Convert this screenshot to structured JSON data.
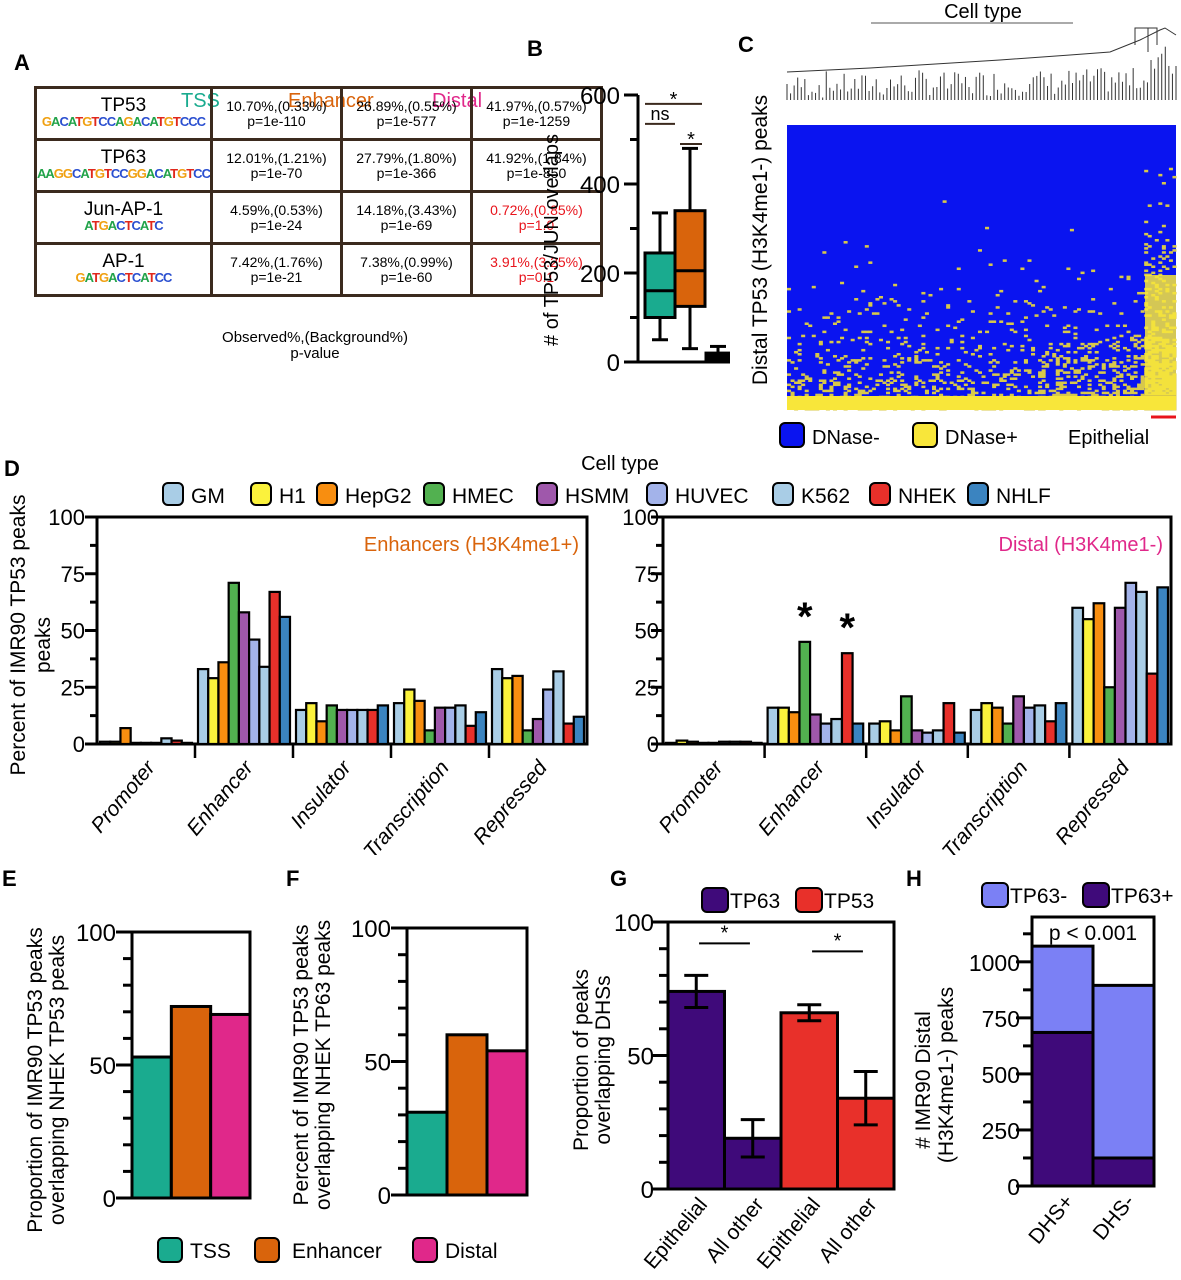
{
  "panels": {
    "A": {
      "letter": "A",
      "columns": [
        {
          "label": "TSS",
          "color": "#1aab8f"
        },
        {
          "label": "Enhancer",
          "color": "#d9640c"
        },
        {
          "label": "Distal",
          "color": "#e0288a"
        }
      ],
      "rows": [
        {
          "motif": "TP53",
          "logo": "GACATGTCCAGACATGTCCC",
          "cells": [
            {
              "observed": "10.70%,(0.33%)",
              "p": "p=1e-110",
              "highlight": false
            },
            {
              "observed": "26.89%,(0.55%)",
              "p": "p=1e-577",
              "highlight": false
            },
            {
              "observed": "41.97%,(0.57%)",
              "p": "p=1e-1259",
              "highlight": false
            }
          ]
        },
        {
          "motif": "TP63",
          "logo": "AAGGCATGTCCGGACATGTCC",
          "cells": [
            {
              "observed": "12.01%,(1.21%)",
              "p": "p=1e-70",
              "highlight": false
            },
            {
              "observed": "27.79%,(1.80%)",
              "p": "p=1e-366",
              "highlight": false
            },
            {
              "observed": "41.92%,(1.84%)",
              "p": "p=1e-850",
              "highlight": false
            }
          ]
        },
        {
          "motif": "Jun-AP-1",
          "logo": "ATGACTCATC",
          "cells": [
            {
              "observed": "4.59%,(0.53%)",
              "p": "p=1e-24",
              "highlight": false
            },
            {
              "observed": "14.18%,(3.43%)",
              "p": "p=1e-69",
              "highlight": false
            },
            {
              "observed": "0.72%,(0.85%)",
              "p": "p=1.0",
              "highlight": true
            }
          ]
        },
        {
          "motif": "AP-1",
          "logo": "GATGACTCATCC",
          "cells": [
            {
              "observed": "7.42%,(1.76%)",
              "p": "p=1e-21",
              "highlight": false
            },
            {
              "observed": "7.38%,(0.99%)",
              "p": "p=1e-60",
              "highlight": false
            },
            {
              "observed": "3.91%,(3.25%)",
              "p": "p=0.1",
              "highlight": true
            }
          ]
        }
      ],
      "footnote_line1": "Observed%,(Background%)",
      "footnote_line2": "p-value",
      "highlight_color": "#e8141c"
    },
    "C": {
      "letter": "C",
      "title": "Cell type",
      "ylabel": "Distal TP53 (H3K4me1-) peaks",
      "legend": [
        {
          "label": "DNase-",
          "color": "#0a14f0"
        },
        {
          "label": "DNase+",
          "color": "#f8e63a"
        }
      ],
      "annotation": "Epithelial",
      "annotation_color": "#e8141c"
    }
  },
  "chart_data": [
    {
      "id": "B",
      "letter": "B",
      "type": "box",
      "ylabel": "# of TP53/JUN overlaps",
      "ylim": [
        0,
        600
      ],
      "yticks": [
        0,
        200,
        400,
        600
      ],
      "categories": [
        "TSS",
        "Enhancer",
        "Distal"
      ],
      "colors": [
        "#1aab8f",
        "#d9640c",
        "#000000"
      ],
      "boxes": [
        {
          "min": 50,
          "q1": 100,
          "median": 160,
          "q3": 245,
          "max": 335
        },
        {
          "min": 30,
          "q1": 125,
          "median": 205,
          "q3": 340,
          "max": 480
        },
        {
          "min": 0,
          "q1": 0,
          "median": 10,
          "q3": 20,
          "max": 35
        }
      ],
      "annotations": [
        {
          "label": "*",
          "from": 0,
          "to": 2,
          "y": 580
        },
        {
          "label": "ns",
          "from": 0,
          "to": 1,
          "y": 535
        },
        {
          "label": "*",
          "from": 1,
          "to": 2,
          "y": 490
        }
      ]
    },
    {
      "id": "D",
      "letter": "D",
      "type": "bar",
      "legend_title": "Cell type",
      "ylabel": "Percent of IMR90  TP53 peaks",
      "ylim": [
        0,
        100
      ],
      "yticks": [
        0,
        25,
        50,
        75,
        100
      ],
      "categories": [
        "Promoter",
        "Enhancer",
        "Insulator",
        "Transcription",
        "Repressed"
      ],
      "series_names": [
        "GM",
        "H1",
        "HepG2",
        "HMEC",
        "HSMM",
        "HUVEC",
        "K562",
        "NHEK",
        "NHLF"
      ],
      "series_colors": [
        "#a9cde6",
        "#fbf23c",
        "#f88e10",
        "#52b150",
        "#9f58ab",
        "#a3b3ea",
        "#a9cde6",
        "#e8302a",
        "#3b84c0"
      ],
      "subplots": [
        {
          "title": "Enhancers (H3K4me1+)",
          "title_color": "#d9640c",
          "values": [
            [
              1,
              1,
              7,
              0.5,
              0.5,
              0.5,
              2.5,
              1.5,
              0.5
            ],
            [
              33,
              29,
              36,
              71,
              58,
              46,
              34,
              67,
              56
            ],
            [
              15,
              18,
              10,
              17,
              15,
              15,
              15,
              15,
              17
            ],
            [
              18,
              24,
              19,
              6,
              16,
              16,
              17,
              8,
              14
            ],
            [
              33,
              29,
              30,
              6,
              11,
              24,
              32,
              9,
              12
            ]
          ],
          "stars": []
        },
        {
          "title": "Distal (H3K4me1-)",
          "title_color": "#e0288a",
          "values": [
            [
              0.5,
              1.5,
              1,
              0.5,
              0.5,
              1,
              1,
              1,
              0.5
            ],
            [
              16,
              16,
              14,
              45,
              13,
              9,
              11,
              40,
              9
            ],
            [
              9,
              10,
              6,
              21,
              6,
              5,
              6,
              18,
              5
            ],
            [
              15,
              18,
              16,
              9,
              21,
              16,
              17,
              10,
              18
            ],
            [
              60,
              55,
              62,
              25,
              60,
              71,
              67,
              31,
              69
            ]
          ],
          "stars": [
            {
              "category": 1,
              "series": 3,
              "label": "*"
            },
            {
              "category": 1,
              "series": 7,
              "label": "*"
            }
          ]
        }
      ]
    },
    {
      "id": "E",
      "letter": "E",
      "type": "bar",
      "ylabel_line1": "Proportion of IMR90 TP53 peaks",
      "ylabel_line2": "overlapping NHEK TP53 peaks",
      "ylim": [
        0,
        100
      ],
      "yticks": [
        0,
        50,
        100
      ],
      "categories": [
        "TSS",
        "Enhancer",
        "Distal"
      ],
      "values": [
        53,
        72,
        69
      ],
      "colors": [
        "#1aab8f",
        "#d9640c",
        "#e0288a"
      ]
    },
    {
      "id": "F",
      "letter": "F",
      "type": "bar",
      "ylabel_line1": "Percent of IMR90 TP53 peaks",
      "ylabel_line2": "overlapping NHEK TP63 peaks",
      "ylim": [
        0,
        100
      ],
      "yticks": [
        0,
        50,
        100
      ],
      "categories": [
        "TSS",
        "Enhancer",
        "Distal"
      ],
      "values": [
        31,
        60,
        54
      ],
      "colors": [
        "#1aab8f",
        "#d9640c",
        "#e0288a"
      ],
      "legend": [
        {
          "label": "TSS",
          "color": "#1aab8f"
        },
        {
          "label": "Enhancer",
          "color": "#d9640c"
        },
        {
          "label": "Distal",
          "color": "#e0288a"
        }
      ]
    },
    {
      "id": "G",
      "letter": "G",
      "type": "bar",
      "ylabel_line1": "Proportion of peaks",
      "ylabel_line2": "overlapping DHSs",
      "ylim": [
        0,
        100
      ],
      "yticks": [
        0,
        50,
        100
      ],
      "categories": [
        "Epithelial",
        "All other",
        "Epithelial",
        "All other"
      ],
      "series": [
        {
          "name": "TP63",
          "color": "#3f0a7a"
        },
        {
          "name": "TP53",
          "color": "#e8302a"
        }
      ],
      "values": [
        74,
        19,
        66,
        34
      ],
      "errors": [
        6,
        7,
        3,
        10
      ],
      "bar_series": [
        0,
        0,
        1,
        1
      ],
      "annotations": [
        {
          "label": "*",
          "from": 0,
          "to": 1,
          "y": 92
        },
        {
          "label": "*",
          "from": 2,
          "to": 3,
          "y": 89
        }
      ]
    },
    {
      "id": "H",
      "letter": "H",
      "type": "stacked_bar",
      "ylabel_line1": "# IMR90 Distal",
      "ylabel_line2": "(H3K4me1-) peaks",
      "ylim": [
        0,
        1200
      ],
      "yticks": [
        0,
        250,
        500,
        750,
        1000
      ],
      "categories": [
        "DHS+",
        "DHS-"
      ],
      "series": [
        {
          "name": "TP63-",
          "color": "#7b80f5",
          "values": [
            385,
            770
          ]
        },
        {
          "name": "TP63+",
          "color": "#3f0a7a",
          "values": [
            685,
            125
          ]
        }
      ],
      "annotation": "p < 0.001"
    }
  ]
}
